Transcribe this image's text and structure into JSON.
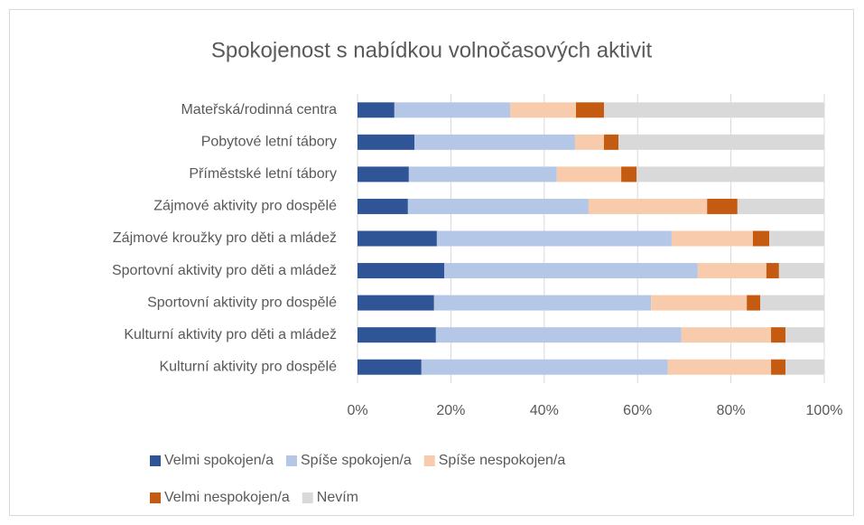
{
  "chart_data": {
    "type": "stacked_bar_horizontal",
    "title": "Spokojenost s nabídkou volnočasových aktivit",
    "categories": [
      "Mateřská/rodinná centra",
      "Pobytové letní tábory",
      "Příměstské letní tábory",
      "Zájmové aktivity pro dospělé",
      "Zájmové kroužky pro děti a mládež",
      "Sportovní aktivity pro děti a mládež",
      "Sportovní aktivity pro dospělé",
      "Kulturní aktivity pro děti a mládež",
      "Kulturní aktivity pro dospělé"
    ],
    "series": [
      {
        "name": "Velmi spokojen/a",
        "color": "#2f5597",
        "values": [
          7.9,
          12.2,
          11,
          10.8,
          17,
          18.6,
          16.4,
          16.8,
          13.7
        ]
      },
      {
        "name": "Spíše spokojen/a",
        "color": "#b4c7e7",
        "values": [
          24.8,
          34.4,
          31.7,
          38.7,
          50.3,
          54.3,
          46.5,
          52.6,
          52.8
        ]
      },
      {
        "name": "Spíše nespokojen/a",
        "color": "#f8cbad",
        "values": [
          14.1,
          6.2,
          13.8,
          25.4,
          17.4,
          14.7,
          20.5,
          19.2,
          22.1
        ]
      },
      {
        "name": "Velmi nespokojen/a",
        "color": "#c55a11",
        "values": [
          6,
          3.1,
          3.3,
          6.5,
          3.5,
          2.7,
          2.9,
          3.1,
          3.1
        ]
      },
      {
        "name": "Nevím",
        "color": "#d9d9d9",
        "values": [
          47.2,
          44.1,
          40.2,
          18.6,
          11.8,
          9.7,
          13.7,
          8.3,
          8.3
        ]
      }
    ],
    "xlim": [
      0,
      100
    ],
    "xticks": [
      {
        "value": 0,
        "label": "0%"
      },
      {
        "value": 20,
        "label": "20%"
      },
      {
        "value": 40,
        "label": "40%"
      },
      {
        "value": 60,
        "label": "60%"
      },
      {
        "value": 80,
        "label": "80%"
      },
      {
        "value": 100,
        "label": "100%"
      }
    ],
    "grid": true,
    "legend": "bottom"
  }
}
